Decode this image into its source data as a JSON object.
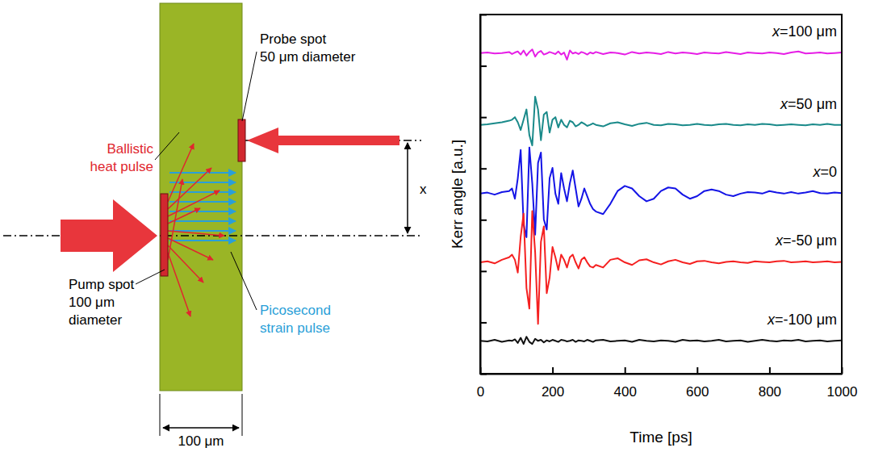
{
  "diagram": {
    "heat_pulse_label": [
      "Ballistic",
      "heat pulse"
    ],
    "probe_label": [
      "Probe spot",
      "50 μm diameter"
    ],
    "pump_label": [
      "Pump spot",
      "100 μm",
      "diameter"
    ],
    "strain_label": [
      "Picosecond",
      "strain pulse"
    ],
    "width_label": "100 μm",
    "offset_label": "x"
  },
  "chart_data": {
    "type": "line",
    "xlabel": "Time [ps]",
    "ylabel": "Kerr angle [a.u.]",
    "xlim": [
      0,
      1000
    ],
    "xticks": [
      0,
      200,
      400,
      600,
      800,
      1000
    ],
    "ylim": [
      0,
      7
    ],
    "yticks": [
      0,
      1,
      2,
      3,
      4,
      5,
      6,
      7
    ],
    "tick_labels": "x",
    "grid": false,
    "x": [
      0,
      20,
      40,
      60,
      80,
      88,
      96,
      104,
      112,
      120,
      128,
      136,
      144,
      152,
      160,
      168,
      176,
      184,
      192,
      200,
      208,
      216,
      224,
      232,
      240,
      248,
      256,
      264,
      272,
      280,
      288,
      296,
      304,
      312,
      320,
      340,
      360,
      380,
      400,
      420,
      440,
      460,
      480,
      500,
      520,
      540,
      560,
      580,
      600,
      620,
      640,
      660,
      680,
      700,
      720,
      740,
      760,
      780,
      800,
      820,
      840,
      860,
      880,
      900,
      920,
      940,
      960,
      980,
      1000
    ],
    "series": [
      {
        "name": "x=100 μm",
        "color": "#e61ee6",
        "values": [
          6.25,
          6.26,
          6.24,
          6.25,
          6.27,
          6.23,
          6.26,
          6.28,
          6.22,
          6.3,
          6.2,
          6.27,
          6.32,
          6.18,
          6.26,
          6.29,
          6.22,
          6.24,
          6.27,
          6.25,
          6.23,
          6.28,
          6.22,
          6.26,
          6.12,
          6.3,
          6.24,
          6.26,
          6.23,
          6.27,
          6.25,
          6.22,
          6.26,
          6.24,
          6.27,
          6.23,
          6.26,
          6.25,
          6.22,
          6.27,
          6.24,
          6.26,
          6.25,
          6.23,
          6.27,
          6.24,
          6.26,
          6.25,
          6.23,
          6.26,
          6.25,
          6.24,
          6.27,
          6.25,
          6.23,
          6.26,
          6.25,
          6.24,
          6.26,
          6.25,
          6.23,
          6.26,
          6.28,
          6.24,
          6.25,
          6.26,
          6.24,
          6.25,
          6.26
        ]
      },
      {
        "name": "x=50 μm",
        "color": "#1a8a8a",
        "values": [
          4.85,
          4.86,
          4.88,
          4.9,
          4.93,
          4.95,
          5.0,
          4.9,
          4.75,
          4.95,
          5.15,
          4.65,
          4.45,
          5.4,
          5.15,
          4.55,
          5.05,
          5.1,
          4.7,
          4.95,
          5.0,
          4.8,
          4.95,
          4.85,
          4.8,
          4.93,
          4.9,
          4.82,
          4.85,
          4.9,
          4.87,
          4.83,
          4.85,
          4.88,
          4.85,
          4.82,
          4.88,
          4.9,
          4.86,
          4.83,
          4.87,
          4.89,
          4.85,
          4.84,
          4.87,
          4.86,
          4.84,
          4.85,
          4.87,
          4.85,
          4.84,
          4.86,
          4.87,
          4.85,
          4.84,
          4.86,
          4.85,
          4.87,
          4.86,
          4.84,
          4.85,
          4.86,
          4.85,
          4.84,
          4.86,
          4.85,
          4.87,
          4.85,
          4.85
        ]
      },
      {
        "name": "x=0",
        "color": "#1414e6",
        "values": [
          3.51,
          3.53,
          3.49,
          3.54,
          3.56,
          3.61,
          3.41,
          3.81,
          4.36,
          2.91,
          2.66,
          4.41,
          3.71,
          2.71,
          4.11,
          4.31,
          3.01,
          2.81,
          3.81,
          4.01,
          3.51,
          3.31,
          3.91,
          3.61,
          3.36,
          3.71,
          3.96,
          3.61,
          3.26,
          3.41,
          3.61,
          3.46,
          3.31,
          3.21,
          3.16,
          3.11,
          3.31,
          3.56,
          3.66,
          3.61,
          3.46,
          3.36,
          3.41,
          3.56,
          3.63,
          3.61,
          3.49,
          3.41,
          3.46,
          3.56,
          3.59,
          3.56,
          3.49,
          3.46,
          3.51,
          3.54,
          3.53,
          3.51,
          3.56,
          3.53,
          3.51,
          3.54,
          3.51,
          3.53,
          3.56,
          3.52,
          3.51,
          3.53,
          3.52
        ]
      },
      {
        "name": "x=-50 μm",
        "color": "#f52020",
        "values": [
          2.17,
          2.19,
          2.15,
          2.22,
          2.27,
          2.32,
          2.22,
          1.97,
          2.67,
          3.12,
          1.67,
          1.27,
          3.17,
          2.37,
          0.97,
          2.57,
          2.87,
          1.57,
          1.87,
          2.47,
          2.27,
          2.02,
          2.32,
          2.22,
          2.07,
          2.27,
          2.32,
          2.17,
          2.05,
          2.22,
          2.27,
          2.17,
          2.09,
          2.07,
          2.12,
          2.07,
          2.22,
          2.25,
          2.17,
          2.12,
          2.21,
          2.23,
          2.17,
          2.13,
          2.19,
          2.22,
          2.17,
          2.14,
          2.19,
          2.2,
          2.17,
          2.15,
          2.18,
          2.19,
          2.17,
          2.16,
          2.19,
          2.18,
          2.17,
          2.19,
          2.2,
          2.17,
          2.18,
          2.19,
          2.17,
          2.18,
          2.19,
          2.17,
          2.18
        ]
      },
      {
        "name": "x=-100 μm",
        "color": "#111111",
        "values": [
          0.64,
          0.63,
          0.66,
          0.62,
          0.65,
          0.64,
          0.67,
          0.6,
          0.7,
          0.58,
          0.72,
          0.62,
          0.58,
          0.68,
          0.64,
          0.66,
          0.61,
          0.65,
          0.63,
          0.66,
          0.64,
          0.62,
          0.66,
          0.65,
          0.63,
          0.64,
          0.66,
          0.62,
          0.65,
          0.64,
          0.63,
          0.66,
          0.64,
          0.62,
          0.65,
          0.66,
          0.63,
          0.64,
          0.65,
          0.62,
          0.66,
          0.64,
          0.63,
          0.65,
          0.64,
          0.62,
          0.66,
          0.64,
          0.65,
          0.63,
          0.64,
          0.66,
          0.63,
          0.64,
          0.65,
          0.62,
          0.64,
          0.66,
          0.64,
          0.63,
          0.65,
          0.64,
          0.66,
          0.63,
          0.64,
          0.65,
          0.63,
          0.64,
          0.65
        ]
      }
    ]
  }
}
